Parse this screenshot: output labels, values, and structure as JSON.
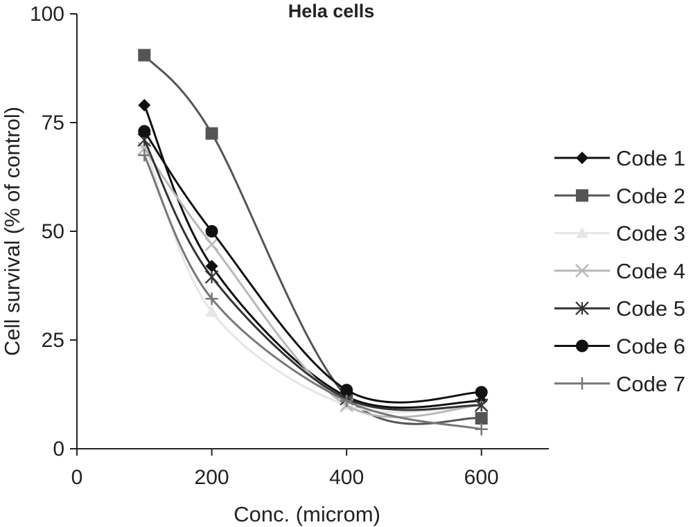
{
  "chart_data": {
    "type": "line",
    "title": "Hela cells",
    "xlabel": "Conc. (microm)",
    "ylabel": "Cell survival (% of control)",
    "xlim": [
      0,
      700
    ],
    "ylim": [
      0,
      100
    ],
    "xticks": [
      0,
      200,
      400,
      600
    ],
    "yticks": [
      0,
      25,
      50,
      75,
      100
    ],
    "grid": false,
    "legend_position": "right",
    "x": [
      100,
      200,
      400,
      600
    ],
    "series": [
      {
        "name": "Code 1",
        "values": [
          79,
          42,
          12,
          11
        ],
        "color": "#111111",
        "marker": "diamond"
      },
      {
        "name": "Code 2",
        "values": [
          90.5,
          72.5,
          12,
          7
        ],
        "color": "#555555",
        "marker": "square"
      },
      {
        "name": "Code 3",
        "values": [
          70,
          31.5,
          10,
          10
        ],
        "color": "#e6e6e6",
        "marker": "triangle"
      },
      {
        "name": "Code 4",
        "values": [
          69,
          47,
          10,
          10
        ],
        "color": "#b8b8b8",
        "marker": "x"
      },
      {
        "name": "Code 5",
        "values": [
          71,
          39.5,
          11.5,
          10
        ],
        "color": "#333333",
        "marker": "asterisk"
      },
      {
        "name": "Code 6",
        "values": [
          73,
          50,
          13.5,
          13
        ],
        "color": "#111111",
        "marker": "circle"
      },
      {
        "name": "Code 7",
        "values": [
          67.5,
          34.5,
          11,
          4.5
        ],
        "color": "#777777",
        "marker": "plus"
      }
    ]
  }
}
